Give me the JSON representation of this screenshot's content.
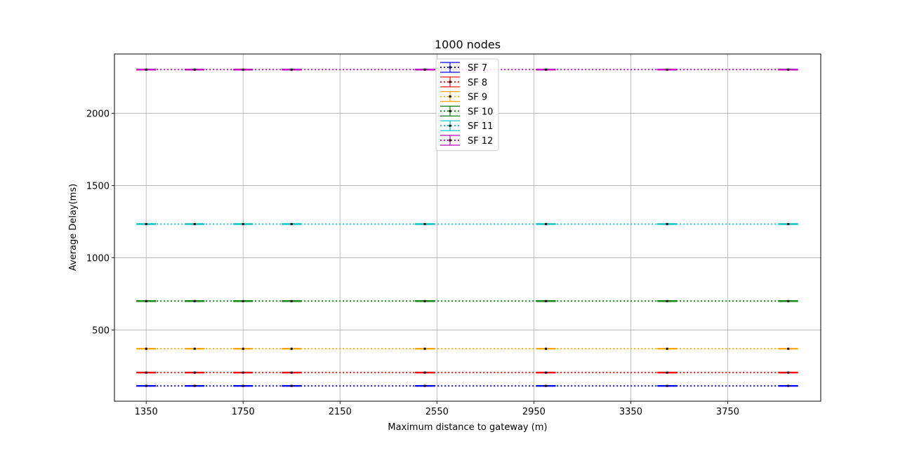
{
  "chart_data": {
    "type": "line",
    "title": "1000 nodes",
    "xlabel": "Maximum distance to gateway (m)",
    "ylabel": "Average Delay(ms)",
    "x": [
      1350,
      1550,
      1750,
      1950,
      2500,
      3000,
      3500,
      4000
    ],
    "xticks": [
      1350,
      1750,
      2150,
      2550,
      2950,
      3350,
      3750
    ],
    "yticks": [
      500,
      1000,
      1500,
      2000
    ],
    "xlim": [
      1219,
      4134
    ],
    "ylim": [
      7,
      2410
    ],
    "grid": true,
    "legend_position": "top-center",
    "series": [
      {
        "name": "SF 7",
        "color": "#0000ff",
        "values": [
          113,
          113,
          113,
          113,
          113,
          113,
          113,
          113
        ]
      },
      {
        "name": "SF 8",
        "color": "#ff0000",
        "values": [
          205,
          205,
          205,
          205,
          205,
          205,
          205,
          205
        ]
      },
      {
        "name": "SF 9",
        "color": "#ffa500",
        "values": [
          370,
          370,
          370,
          370,
          370,
          370,
          370,
          370
        ]
      },
      {
        "name": "SF 10",
        "color": "#008000",
        "values": [
          700,
          700,
          700,
          700,
          700,
          700,
          700,
          700
        ]
      },
      {
        "name": "SF 11",
        "color": "#00bfbf",
        "values": [
          1233,
          1233,
          1233,
          1233,
          1233,
          1233,
          1233,
          1233
        ]
      },
      {
        "name": "SF 12",
        "color": "#bf00bf",
        "values": [
          2302,
          2302,
          2302,
          2302,
          2302,
          2302,
          2302,
          2302
        ]
      }
    ]
  }
}
